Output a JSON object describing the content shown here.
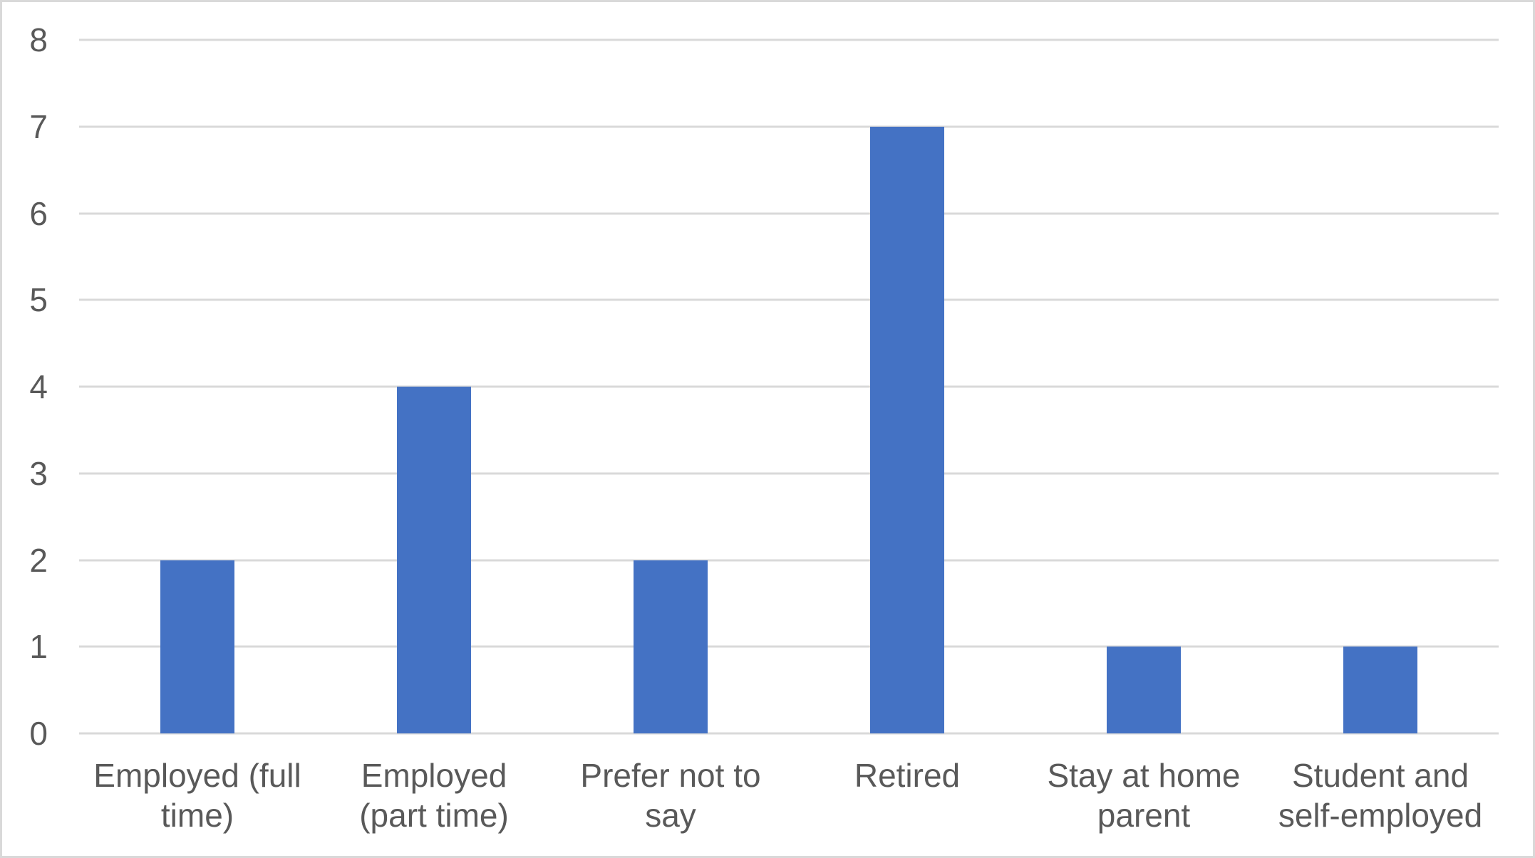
{
  "chart_data": {
    "type": "bar",
    "title": "",
    "xlabel": "",
    "ylabel": "",
    "categories": [
      "Employed (full time)",
      "Employed (part time)",
      "Prefer not to say",
      "Retired",
      "Stay at home parent",
      "Student and self-employed"
    ],
    "category_label_lines": [
      [
        "Employed (full",
        "time)"
      ],
      [
        "Employed",
        "(part time)"
      ],
      [
        "Prefer not to",
        "say"
      ],
      [
        "Retired"
      ],
      [
        "Stay at home",
        "parent"
      ],
      [
        "Student and",
        "self-employed"
      ]
    ],
    "values": [
      2,
      4,
      2,
      7,
      1,
      1
    ],
    "ylim": [
      0,
      8
    ],
    "ytick_step": 1,
    "y_tick_labels": [
      "0",
      "1",
      "2",
      "3",
      "4",
      "5",
      "6",
      "7",
      "8"
    ],
    "grid": true,
    "legend": "none",
    "colors": {
      "bar": "#4472C4",
      "gridline": "#D9D9D9",
      "text": "#595959",
      "frame_border": "#D9D9D9",
      "background": "#FFFFFF"
    }
  }
}
